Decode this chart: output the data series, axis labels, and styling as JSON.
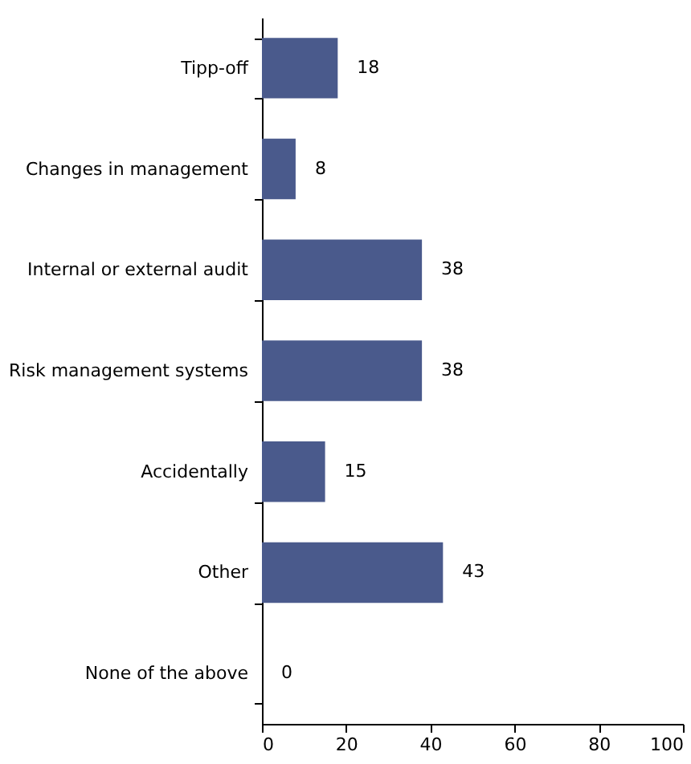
{
  "chart_data": {
    "type": "bar",
    "orientation": "horizontal",
    "categories": [
      "Tipp-off",
      "Changes in management",
      "Internal or external audit",
      "Risk management systems",
      "Accidentally",
      "Other",
      "None of the above"
    ],
    "values": [
      18,
      8,
      38,
      38,
      15,
      43,
      0
    ],
    "color": "#4a5a8c",
    "xlim": [
      0,
      100
    ],
    "xticks": [
      0,
      20,
      40,
      60,
      80,
      100
    ],
    "data_labels": true,
    "grid": false
  }
}
